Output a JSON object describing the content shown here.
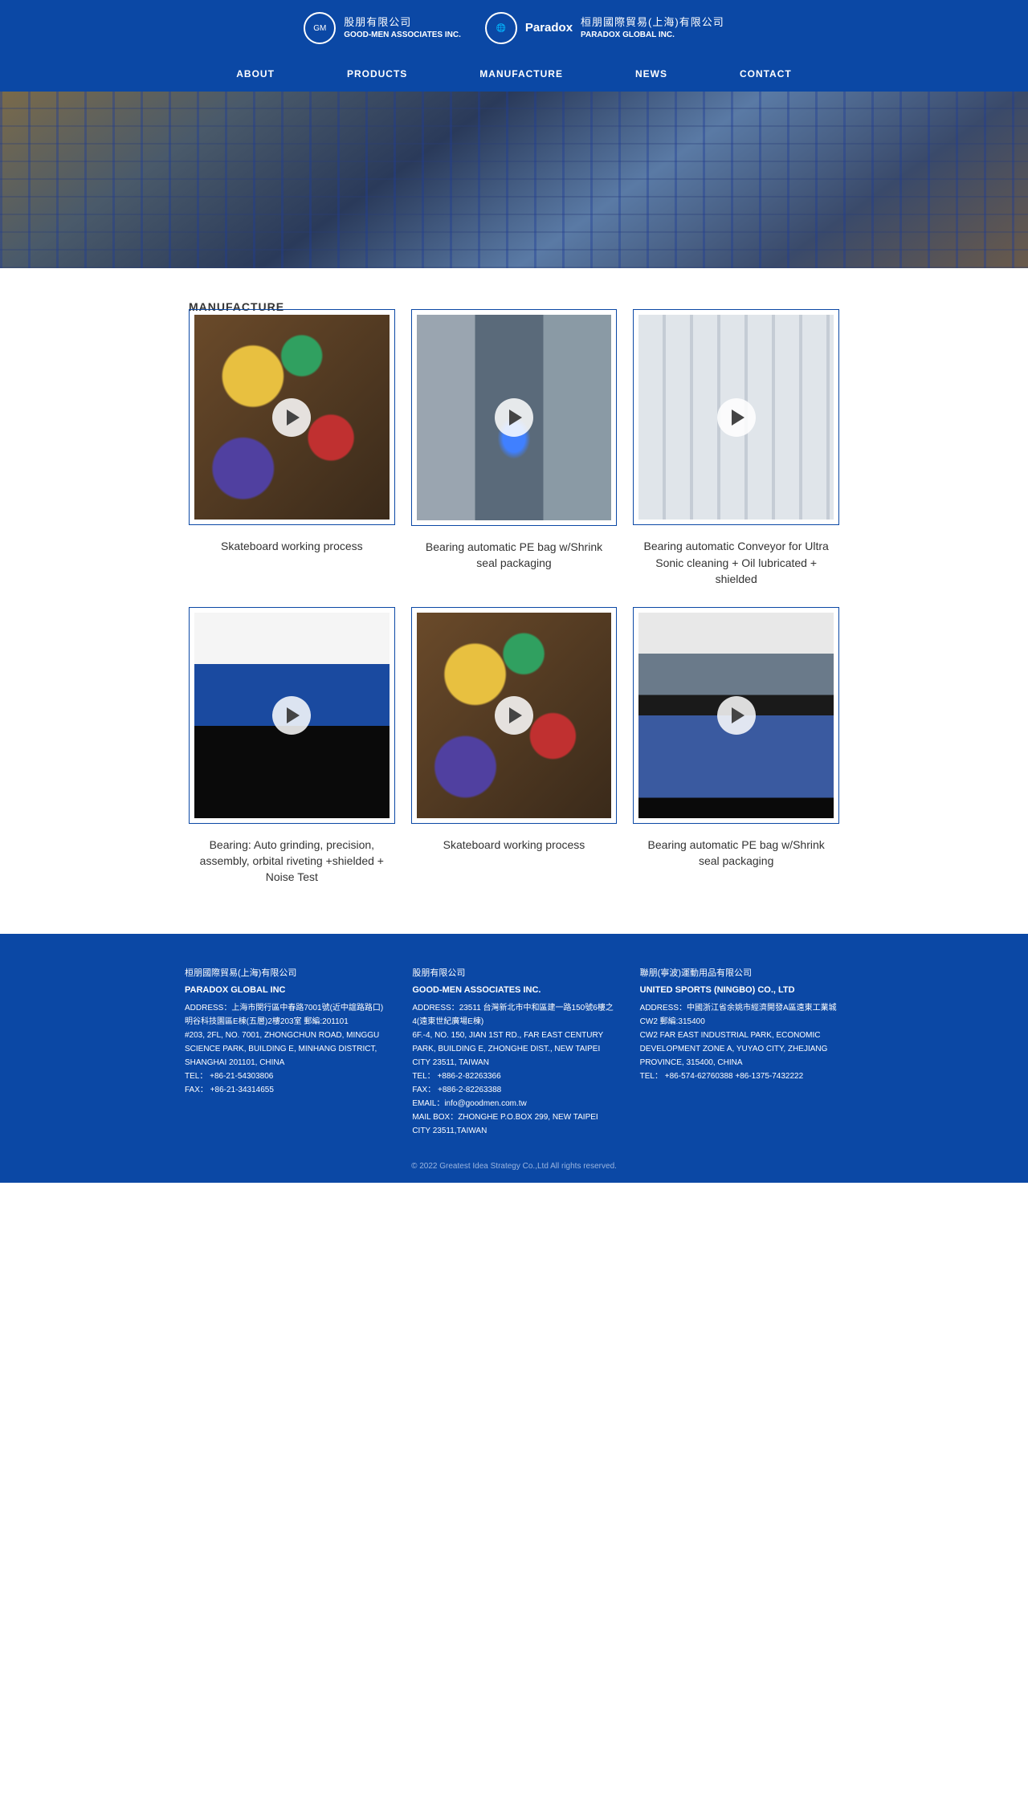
{
  "header": {
    "logo1_cn": "股朋有限公司",
    "logo1_en": "GOOD-MEN ASSOCIATES INC.",
    "logo2_brand": "Paradox",
    "logo2_cn": "桓朋國際貿易(上海)有限公司",
    "logo2_en": "PARADOX GLOBAL INC."
  },
  "nav": {
    "about": "ABOUT",
    "products": "PRODUCTS",
    "manufacture": "MANUFACTURE",
    "news": "NEWS",
    "contact": "CONTACT"
  },
  "section": {
    "title": "MANUFACTURE"
  },
  "videos": [
    {
      "caption": "Skateboard working process",
      "bg": "bg-skate"
    },
    {
      "caption": "Bearing automatic PE bag w/Shrink seal packaging",
      "bg": "bg-machine-blue"
    },
    {
      "caption": "Bearing automatic Conveyor for Ultra Sonic cleaning + Oil lubricated + shielded",
      "bg": "bg-machine-white"
    },
    {
      "caption": "Bearing: Auto grinding, precision, assembly, orbital riveting +shielded + Noise Test",
      "bg": "bg-machine-box"
    },
    {
      "caption": "Skateboard working process",
      "bg": "bg-skate"
    },
    {
      "caption": "Bearing automatic PE bag w/Shrink seal packaging",
      "bg": "bg-machine-panel"
    }
  ],
  "footer": {
    "col1": {
      "cn": "桓朋國際貿易(上海)有限公司",
      "en": "PARADOX GLOBAL INC",
      "addr_label": "ADDRESS：",
      "addr_cn": "上海市閔行區中春路7001號(近中誼路路口)明谷科技園區E棟(五層)2樓203室 郵編:201101",
      "addr_en": "#203, 2FL, NO. 7001, ZHONGCHUN ROAD, MINGGU SCIENCE PARK, BUILDING E, MINHANG DISTRICT, SHANGHAI 201101, CHINA",
      "tel": "TEL： +86-21-54303806",
      "fax": "FAX： +86-21-34314655"
    },
    "col2": {
      "cn": "股朋有限公司",
      "en": "GOOD-MEN ASSOCIATES INC.",
      "addr_label": "ADDRESS：",
      "addr_cn": "23511 台灣新北市中和區建一路150號6樓之4(遠東世紀廣場E棟)",
      "addr_en": "6F.-4, NO. 150, JIAN 1ST RD., FAR EAST CENTURY PARK, BUILDING E, ZHONGHE DIST., NEW TAIPEI CITY 23511, TAIWAN",
      "tel": "TEL： +886-2-82263366",
      "fax": "FAX： +886-2-82263388",
      "email": "EMAIL：info@goodmen.com.tw",
      "mail": "MAIL BOX：ZHONGHE P.O.BOX 299, NEW TAIPEI CITY 23511,TAIWAN"
    },
    "col3": {
      "cn": "聯朋(寧波)運動用品有限公司",
      "en": "UNITED SPORTS (NINGBO) CO., LTD",
      "addr_label": "ADDRESS：",
      "addr_cn": "中國浙江省余姚市經濟開發A區遠東工業城CW2 郵編:315400",
      "addr_en": "CW2 FAR EAST INDUSTRIAL PARK, ECONOMIC DEVELOPMENT ZONE A, YUYAO CITY, ZHEJIANG PROVINCE, 315400, CHINA",
      "tel": "TEL： +86-574-62760388 +86-1375-7432222"
    },
    "copyright": "© 2022 Greatest Idea Strategy Co.,Ltd All rights reserved."
  }
}
